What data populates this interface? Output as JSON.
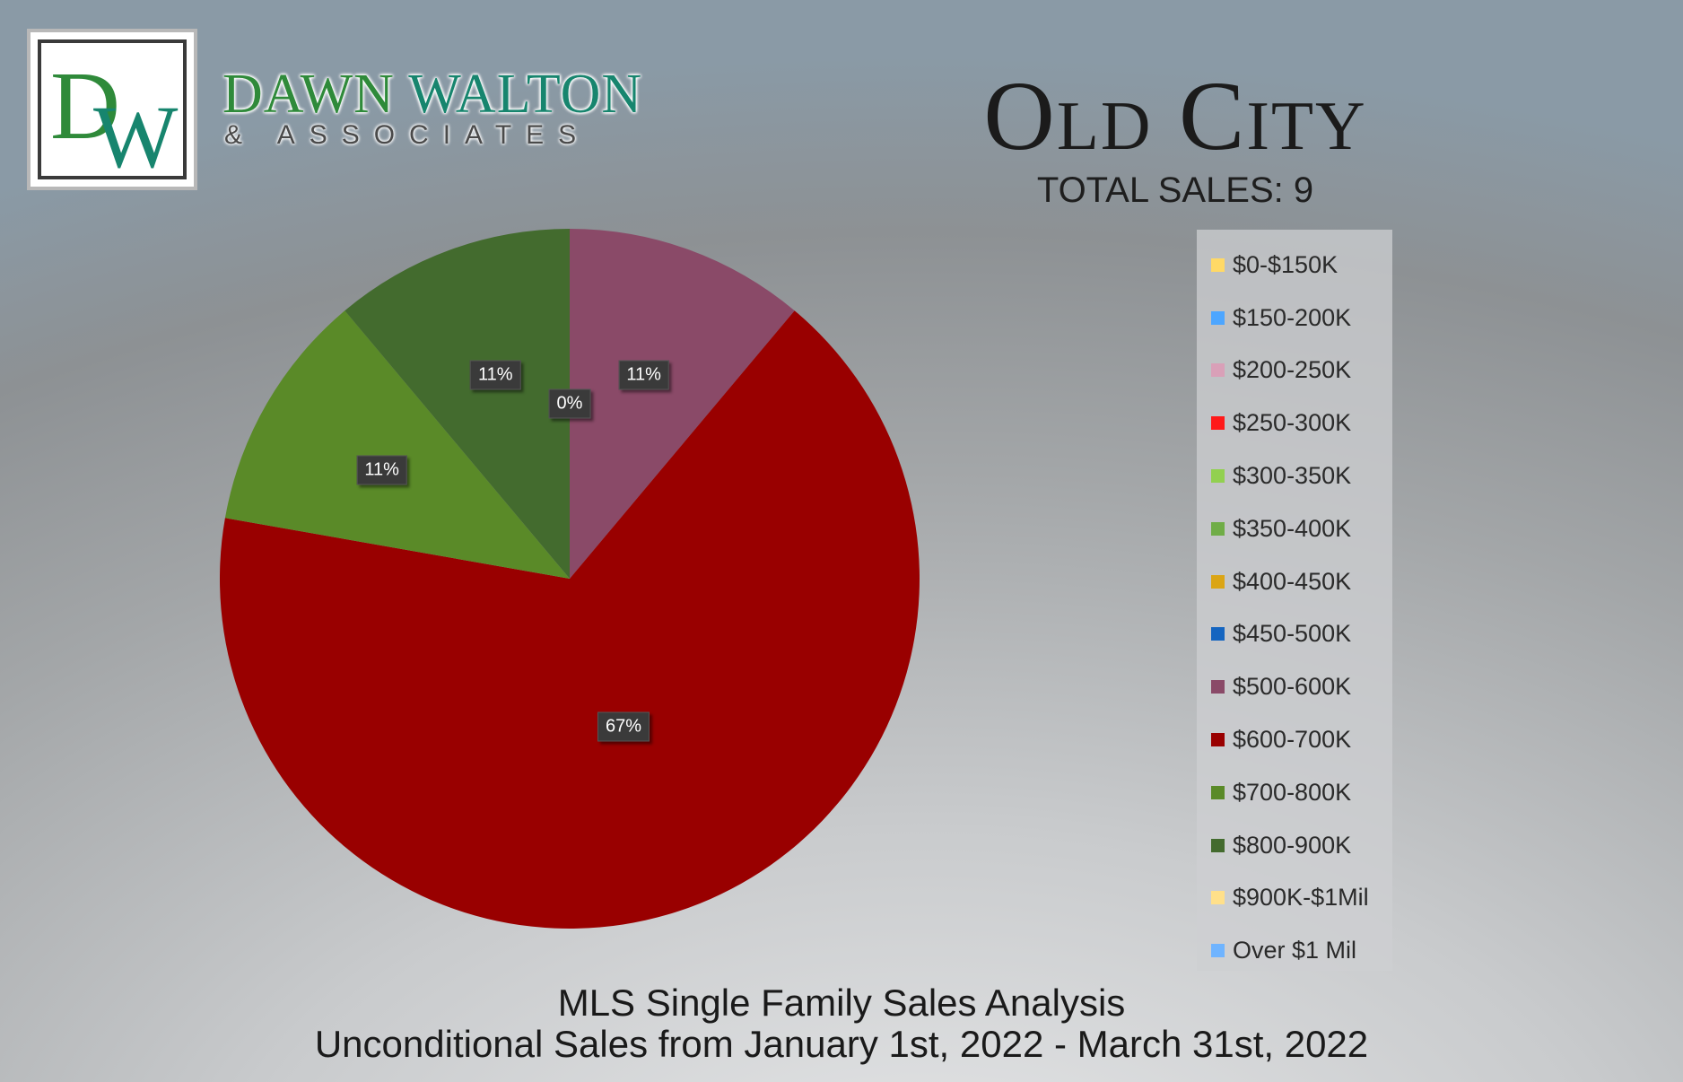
{
  "brand": {
    "logo_letters": "DW",
    "name_part1": "DAWN",
    "name_part2": "WALTON",
    "subtitle": "& ASSOCIATES",
    "colors": {
      "green": "#2f8a3a",
      "teal": "#17856e"
    }
  },
  "header": {
    "title": "Old City",
    "total_sales": "TOTAL SALES: 9"
  },
  "footer": {
    "line1": "MLS Single Family Sales Analysis",
    "line2": "Unconditional Sales from January 1st, 2022 - March 31st, 2022"
  },
  "chart_data": {
    "type": "pie",
    "title": "",
    "legend_position": "right",
    "start_angle_deg": 0,
    "direction": "clockwise",
    "categories": [
      "$0-$150K",
      "$150-200K",
      "$200-250K",
      "$250-300K",
      "$300-350K",
      "$350-400K",
      "$400-450K",
      "$450-500K",
      "$500-600K",
      "$600-700K",
      "$700-800K",
      "$800-900K",
      "$900K-$1Mil",
      "Over $1 Mil"
    ],
    "values": [
      0,
      0,
      0,
      0,
      0,
      0,
      0,
      0,
      1,
      6,
      1,
      1,
      0,
      0
    ],
    "colors": [
      "#ffd966",
      "#4da6ff",
      "#d9a0b8",
      "#ff1a1a",
      "#92d050",
      "#70ad47",
      "#dba515",
      "#1565c0",
      "#8a4a68",
      "#990000",
      "#5a8a28",
      "#436b2e",
      "#ffe08a",
      "#6fb4ff"
    ],
    "data_labels": [
      {
        "text": "11%",
        "slice": 8
      },
      {
        "text": "67%",
        "slice": 9
      },
      {
        "text": "11%",
        "slice": 10
      },
      {
        "text": "11%",
        "slice": 11
      },
      {
        "text": "0%",
        "slice": 0
      }
    ]
  }
}
